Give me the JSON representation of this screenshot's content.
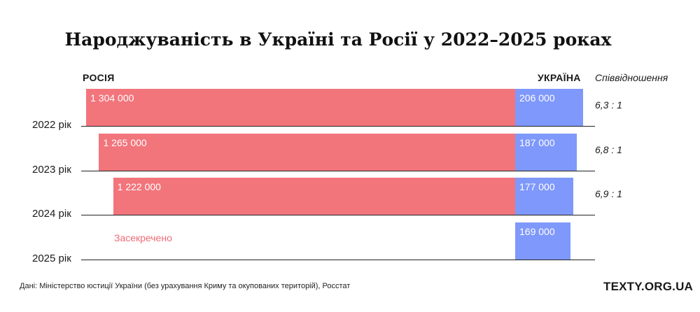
{
  "title": "Народжуваність в Україні та Росії у 2022–2025 роках",
  "headers": {
    "left": "РОСІЯ",
    "right": "УКРАЇНА",
    "ratio": "Співвідношення"
  },
  "colors": {
    "russia": "#f2757c",
    "ukraine": "#7f98fb"
  },
  "chart_data": {
    "type": "bar",
    "orientation": "horizontal-diverging",
    "categories": [
      "2022 рік",
      "2023 рік",
      "2024 рік",
      "2025 рік"
    ],
    "series": [
      {
        "name": "РОСІЯ",
        "values": [
          1304000,
          1265000,
          1222000,
          null
        ],
        "labels": [
          "1 304 000",
          "1 265 000",
          "1 222 000",
          ""
        ]
      },
      {
        "name": "УКРАЇНА",
        "values": [
          206000,
          187000,
          177000,
          169000
        ],
        "labels": [
          "206 000",
          "187 000",
          "177 000",
          "169 000"
        ]
      }
    ],
    "ratios": [
      "6,3 : 1",
      "6,8 : 1",
      "6,9 : 1",
      ""
    ],
    "annotation": "Засекречено"
  },
  "footer": {
    "source": "Дані: Міністерство юстиції України (без урахування Криму та окупованих територій), Росстат",
    "brand": "TEXTY.ORG.UA"
  }
}
